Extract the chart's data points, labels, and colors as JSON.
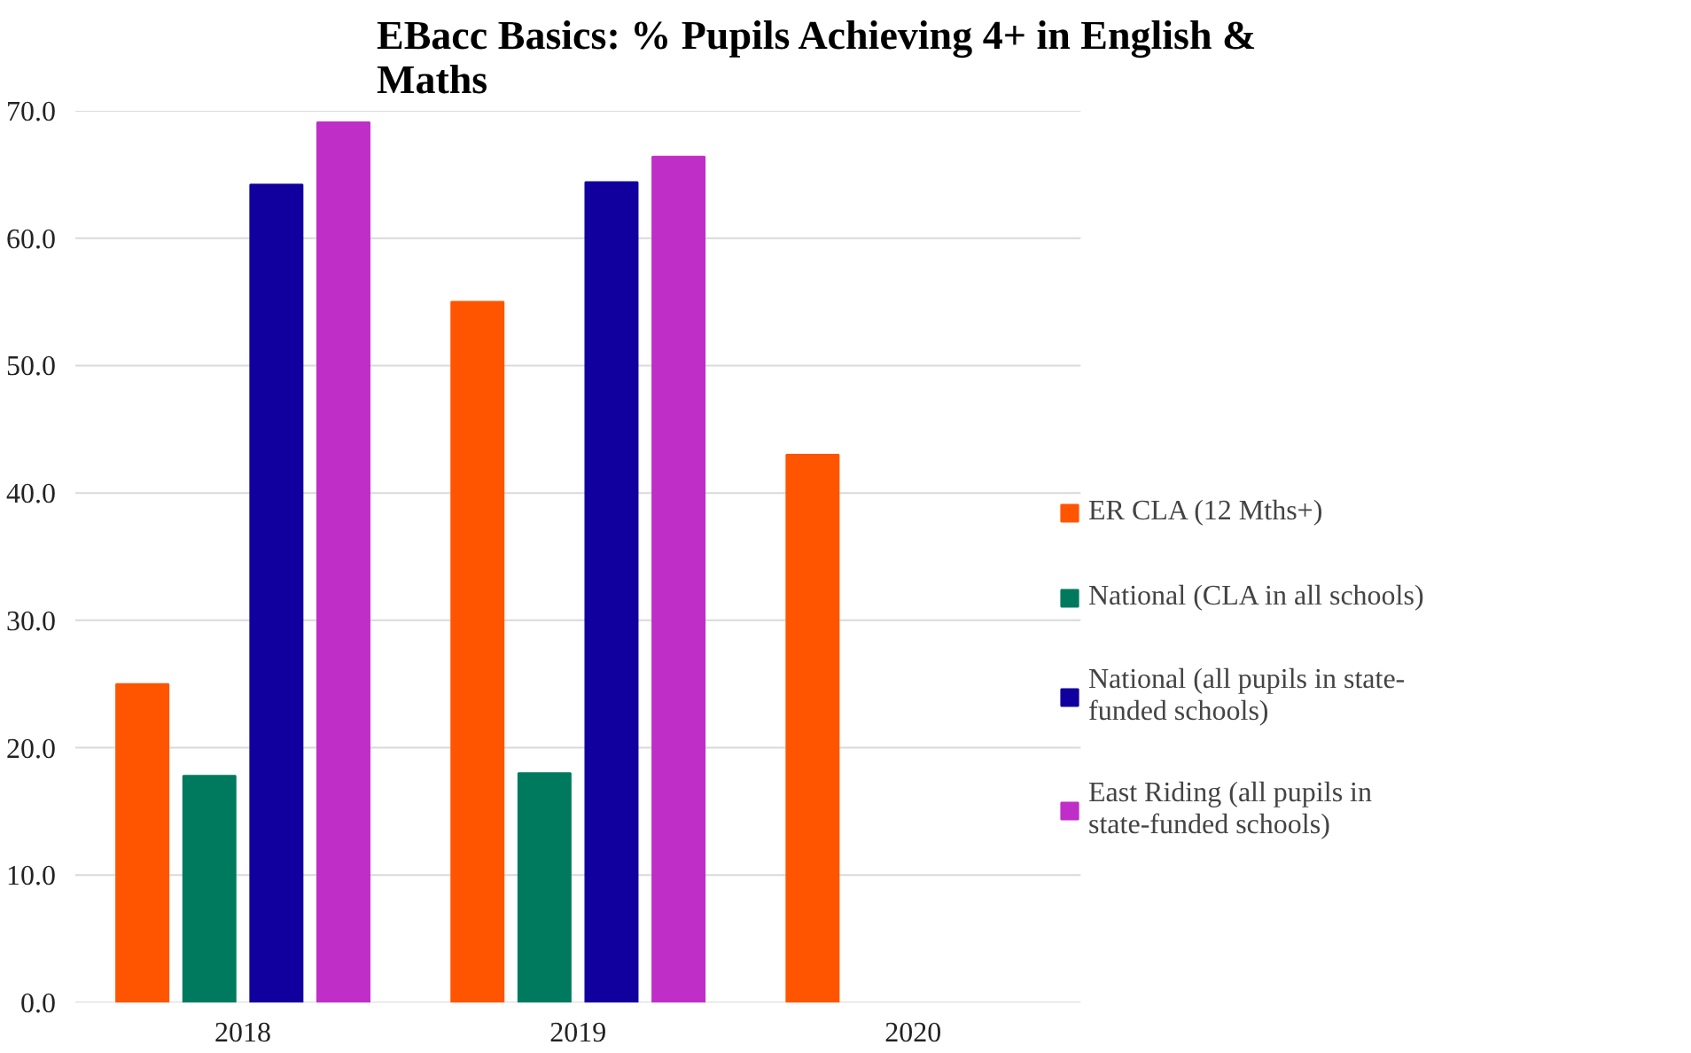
{
  "chart_data": {
    "type": "bar",
    "title": "EBacc Basics: % Pupils Achieving 4+ in English & Maths",
    "categories": [
      "2018",
      "2019",
      "2020"
    ],
    "series": [
      {
        "name": "ER CLA (12 Mths+)",
        "color": "#ff5500",
        "values": [
          25.0,
          55.0,
          43.0
        ]
      },
      {
        "name": "National (CLA in all schools)",
        "color": "#007a5e",
        "values": [
          17.8,
          18.0,
          null
        ]
      },
      {
        "name": "National (all pupils in state-funded schools)",
        "color": "#11009e",
        "values": [
          64.2,
          64.4,
          null
        ]
      },
      {
        "name": "East Riding (all pupils in state-funded schools)",
        "color": "#c02ec8",
        "values": [
          69.1,
          66.4,
          null
        ]
      }
    ],
    "ylim": [
      0,
      70
    ],
    "yticks": [
      {
        "value": 0,
        "label": "0.0"
      },
      {
        "value": 10,
        "label": "10.0"
      },
      {
        "value": 20,
        "label": "20.0"
      },
      {
        "value": 30,
        "label": "30.0"
      },
      {
        "value": 40,
        "label": "40.0"
      },
      {
        "value": 50,
        "label": "50.0"
      },
      {
        "value": 60,
        "label": "60.0"
      },
      {
        "value": 70,
        "label": "70.0"
      }
    ],
    "grid": "y",
    "legend": "right"
  }
}
